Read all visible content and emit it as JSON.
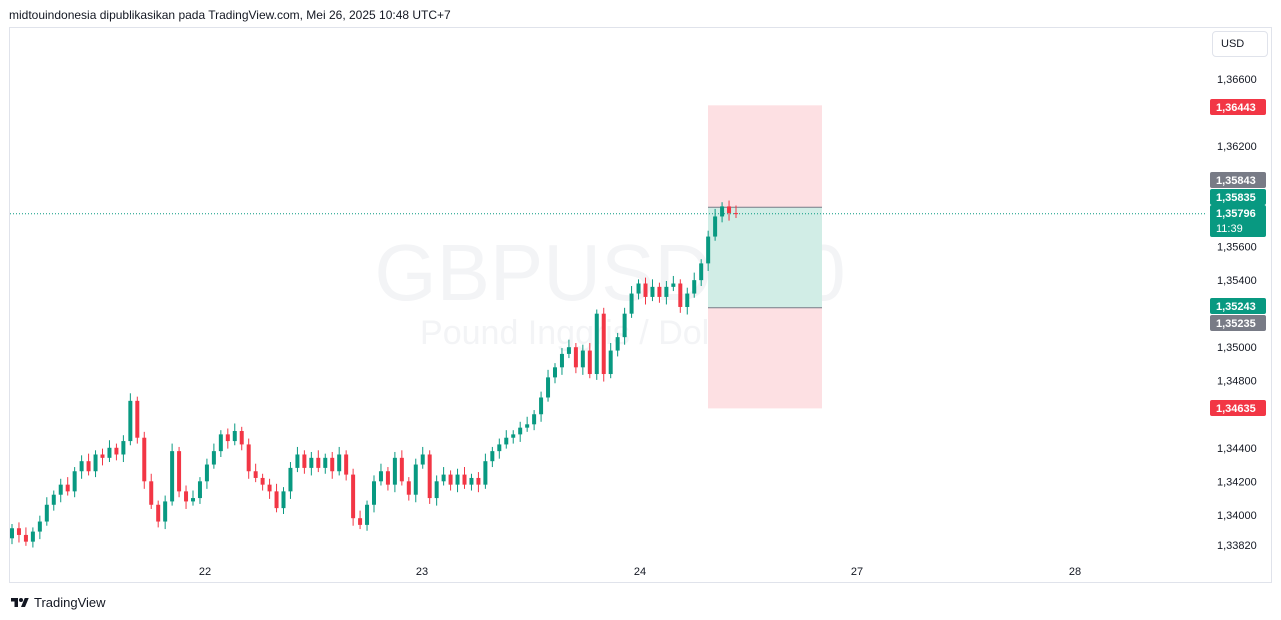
{
  "header": {
    "text": "midtouindonesia dipublikasikan pada TradingView.com, Mei 26, 2025 10:48 UTC+7"
  },
  "watermark": {
    "symbol": "GBPUSD, 30",
    "description": "Pound Inggris / Dollar AS"
  },
  "currency_button": "USD",
  "footer": {
    "brand": "TradingView"
  },
  "colors": {
    "up": "#089981",
    "down": "#f23645",
    "stop_zone": "#fde0e3",
    "target_zone": "#d1ede6",
    "grey_badge": "#787b86",
    "dotted_line": "#089981"
  },
  "chart_data": {
    "type": "candlestick",
    "symbol": "GBPUSD",
    "timeframe": "30",
    "y_axis": {
      "ticks": [
        "1,36600",
        "1,36200",
        "1,35600",
        "1,35400",
        "1,35000",
        "1,34800",
        "1,34400",
        "1,34200",
        "1,34000",
        "1,33820"
      ],
      "tick_values": [
        1.366,
        1.362,
        1.356,
        1.354,
        1.35,
        1.348,
        1.344,
        1.342,
        1.34,
        1.3382
      ],
      "range": [
        1.3374,
        1.3678
      ]
    },
    "x_axis": {
      "ticks": [
        "22",
        "23",
        "24",
        "27",
        "28"
      ]
    },
    "price_labels": [
      {
        "text": "1,36443",
        "value": 1.36443,
        "style": "red"
      },
      {
        "text": "1,35843",
        "value": 1.35843,
        "style": "grey"
      },
      {
        "text": "1,35835",
        "value": 1.35835,
        "style": "green"
      },
      {
        "text": "1,35796",
        "value": 1.35796,
        "style": "green",
        "sub": "11:39"
      },
      {
        "text": "1,35243",
        "value": 1.35243,
        "style": "green"
      },
      {
        "text": "1,35235",
        "value": 1.35235,
        "style": "grey"
      },
      {
        "text": "1,34635",
        "value": 1.34635,
        "style": "red"
      }
    ],
    "position_tool": {
      "upper_stop": 1.36443,
      "entry": 1.35835,
      "lower_target": 1.35235,
      "lower_stop": 1.34635
    },
    "current_price": 1.35796,
    "candles": [
      [
        1.3386,
        1.3392
      ],
      [
        1.3392,
        1.3388
      ],
      [
        1.3388,
        1.3384
      ],
      [
        1.3384,
        1.339
      ],
      [
        1.339,
        1.3396
      ],
      [
        1.3396,
        1.3406
      ],
      [
        1.3406,
        1.3412
      ],
      [
        1.3412,
        1.3418
      ],
      [
        1.3418,
        1.3414
      ],
      [
        1.3414,
        1.3426
      ],
      [
        1.3426,
        1.3432
      ],
      [
        1.3432,
        1.3426
      ],
      [
        1.3426,
        1.3436
      ],
      [
        1.3436,
        1.3434
      ],
      [
        1.3434,
        1.344
      ],
      [
        1.344,
        1.3436
      ],
      [
        1.3436,
        1.3444
      ],
      [
        1.3444,
        1.3468
      ],
      [
        1.3468,
        1.3446
      ],
      [
        1.3446,
        1.342
      ],
      [
        1.342,
        1.3406
      ],
      [
        1.3406,
        1.3396
      ],
      [
        1.3396,
        1.3408
      ],
      [
        1.3408,
        1.3438
      ],
      [
        1.3438,
        1.3414
      ],
      [
        1.3414,
        1.3408
      ],
      [
        1.3408,
        1.341
      ],
      [
        1.341,
        1.342
      ],
      [
        1.342,
        1.343
      ],
      [
        1.343,
        1.3438
      ],
      [
        1.3438,
        1.3448
      ],
      [
        1.3448,
        1.3444
      ],
      [
        1.3444,
        1.345
      ],
      [
        1.345,
        1.3442
      ],
      [
        1.3442,
        1.3426
      ],
      [
        1.3426,
        1.3422
      ],
      [
        1.3422,
        1.3418
      ],
      [
        1.3418,
        1.3414
      ],
      [
        1.3414,
        1.3404
      ],
      [
        1.3404,
        1.3414
      ],
      [
        1.3414,
        1.3428
      ],
      [
        1.3428,
        1.3436
      ],
      [
        1.3436,
        1.3428
      ],
      [
        1.3428,
        1.3434
      ],
      [
        1.3434,
        1.3428
      ],
      [
        1.3428,
        1.3434
      ],
      [
        1.3434,
        1.3426
      ],
      [
        1.3426,
        1.3436
      ],
      [
        1.3436,
        1.3424
      ],
      [
        1.3424,
        1.3398
      ],
      [
        1.3398,
        1.3394
      ],
      [
        1.3394,
        1.3406
      ],
      [
        1.3406,
        1.342
      ],
      [
        1.342,
        1.3426
      ],
      [
        1.3426,
        1.3418
      ],
      [
        1.3418,
        1.3434
      ],
      [
        1.3434,
        1.342
      ],
      [
        1.342,
        1.3412
      ],
      [
        1.3412,
        1.343
      ],
      [
        1.343,
        1.3436
      ],
      [
        1.3436,
        1.341
      ],
      [
        1.341,
        1.342
      ],
      [
        1.342,
        1.3424
      ],
      [
        1.3424,
        1.3418
      ],
      [
        1.3418,
        1.3424
      ],
      [
        1.3424,
        1.3418
      ],
      [
        1.3418,
        1.3422
      ],
      [
        1.3422,
        1.3418
      ],
      [
        1.3418,
        1.3432
      ],
      [
        1.3432,
        1.3438
      ],
      [
        1.3438,
        1.3442
      ],
      [
        1.3442,
        1.3446
      ],
      [
        1.3446,
        1.3448
      ],
      [
        1.3448,
        1.3452
      ],
      [
        1.3452,
        1.3454
      ],
      [
        1.3454,
        1.346
      ],
      [
        1.346,
        1.347
      ],
      [
        1.347,
        1.3482
      ],
      [
        1.3482,
        1.3488
      ],
      [
        1.3488,
        1.3496
      ],
      [
        1.3496,
        1.35
      ],
      [
        1.35,
        1.3488
      ],
      [
        1.3488,
        1.3498
      ],
      [
        1.3498,
        1.3484
      ],
      [
        1.3484,
        1.352
      ],
      [
        1.352,
        1.3484
      ],
      [
        1.3484,
        1.3498
      ],
      [
        1.3498,
        1.3506
      ],
      [
        1.3506,
        1.352
      ],
      [
        1.352,
        1.3532
      ],
      [
        1.3532,
        1.3538
      ],
      [
        1.3538,
        1.353
      ],
      [
        1.353,
        1.3536
      ],
      [
        1.3536,
        1.353
      ],
      [
        1.353,
        1.3536
      ],
      [
        1.3536,
        1.3538
      ],
      [
        1.3538,
        1.3524
      ],
      [
        1.3524,
        1.3532
      ],
      [
        1.3532,
        1.354
      ],
      [
        1.354,
        1.355
      ],
      [
        1.355,
        1.3566
      ],
      [
        1.3566,
        1.3578
      ],
      [
        1.3578,
        1.3584
      ],
      [
        1.3584,
        1.358
      ],
      [
        1.358,
        1.35796
      ]
    ]
  }
}
